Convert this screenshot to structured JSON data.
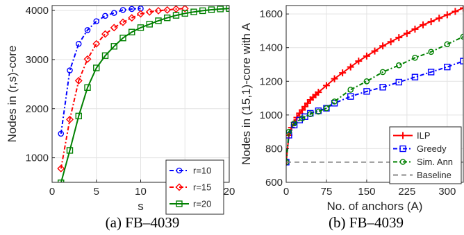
{
  "chart_data": [
    {
      "type": "line",
      "caption": "(a) FB–4039",
      "xlabel": "s",
      "ylabel": "Nodes in (r,s)-core",
      "xlim": [
        0,
        20
      ],
      "ylim": [
        500,
        4100
      ],
      "xticks": [
        0,
        5,
        10,
        15,
        20
      ],
      "yticks": [
        1000,
        2000,
        3000,
        4000
      ],
      "grid": true,
      "legend_position": "bottom-right",
      "series": [
        {
          "name": "r=10",
          "color": "#0000ff",
          "dash": "dashdot",
          "marker": "circle",
          "x": [
            1,
            2,
            3,
            4,
            5,
            6,
            7,
            8,
            9,
            10
          ],
          "y": [
            1490,
            2780,
            3320,
            3600,
            3780,
            3890,
            3950,
            4010,
            4030,
            4039
          ]
        },
        {
          "name": "r=15",
          "color": "#ff0000",
          "dash": "dashdot",
          "marker": "diamond",
          "x": [
            1,
            2,
            3,
            4,
            5,
            6,
            7,
            8,
            9,
            10,
            11,
            12,
            13,
            14,
            15
          ],
          "y": [
            780,
            1780,
            2570,
            3010,
            3320,
            3520,
            3650,
            3760,
            3850,
            3930,
            3970,
            3995,
            4010,
            4030,
            4039
          ]
        },
        {
          "name": "r=20",
          "color": "#008000",
          "dash": "solid",
          "marker": "square",
          "x": [
            1,
            2,
            3,
            4,
            5,
            6,
            7,
            8,
            9,
            10,
            11,
            12,
            13,
            14,
            15,
            16,
            17,
            18,
            19,
            20
          ],
          "y": [
            490,
            1150,
            1850,
            2430,
            2830,
            3080,
            3270,
            3440,
            3560,
            3650,
            3720,
            3790,
            3850,
            3900,
            3940,
            3970,
            3995,
            4015,
            4030,
            4039
          ]
        }
      ]
    },
    {
      "type": "line",
      "caption": "(b) FB–4039",
      "xlabel": "No. of anchors (A)",
      "ylabel": "Nodes in (15,1)-core with A",
      "xlim": [
        0,
        330
      ],
      "ylim": [
        600,
        1650
      ],
      "xticks": [
        0,
        75,
        150,
        225,
        300
      ],
      "yticks": [
        600,
        800,
        1000,
        1200,
        1400,
        1600
      ],
      "grid": true,
      "legend_position": "bottom-right",
      "series": [
        {
          "name": "ILP",
          "color": "#ff0000",
          "dash": "solid",
          "marker": "plus",
          "x": [
            0,
            5,
            10,
            15,
            20,
            25,
            30,
            35,
            40,
            45,
            50,
            55,
            60,
            75,
            90,
            105,
            120,
            135,
            150,
            165,
            180,
            195,
            210,
            225,
            240,
            255,
            270,
            285,
            300,
            315,
            330
          ],
          "y": [
            720,
            880,
            925,
            955,
            985,
            1010,
            1030,
            1050,
            1070,
            1090,
            1105,
            1120,
            1135,
            1175,
            1215,
            1250,
            1285,
            1320,
            1350,
            1380,
            1410,
            1435,
            1460,
            1485,
            1510,
            1535,
            1555,
            1575,
            1595,
            1615,
            1635
          ]
        },
        {
          "name": "Greedy",
          "color": "#0000ff",
          "dash": "dashdot",
          "marker": "square",
          "x": [
            0,
            5,
            15,
            25,
            35,
            45,
            60,
            75,
            90,
            120,
            150,
            180,
            210,
            240,
            270,
            300,
            330
          ],
          "y": [
            720,
            880,
            940,
            970,
            990,
            1010,
            1025,
            1040,
            1070,
            1110,
            1140,
            1165,
            1195,
            1225,
            1255,
            1285,
            1320
          ]
        },
        {
          "name": "Sim. Ann",
          "color": "#008000",
          "dash": "dashdot",
          "marker": "circle",
          "x": [
            0,
            5,
            15,
            30,
            45,
            60,
            75,
            90,
            120,
            150,
            180,
            210,
            240,
            270,
            300,
            330
          ],
          "y": [
            720,
            900,
            950,
            980,
            1005,
            1020,
            1040,
            1080,
            1150,
            1200,
            1255,
            1295,
            1340,
            1375,
            1420,
            1465
          ]
        },
        {
          "name": "Baseline",
          "color": "#888888",
          "dash": "dashed",
          "marker": "none",
          "x": [
            0,
            330
          ],
          "y": [
            720,
            720
          ]
        }
      ]
    }
  ]
}
